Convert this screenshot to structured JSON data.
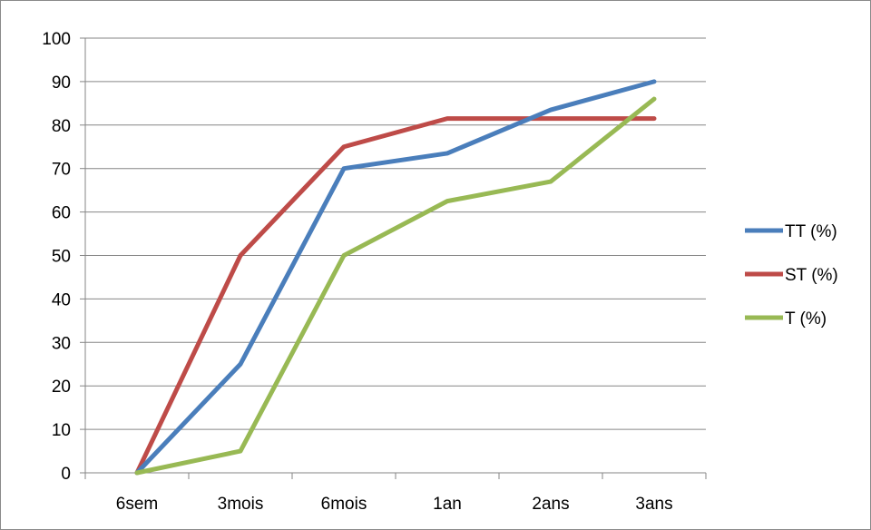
{
  "chart_data": {
    "type": "line",
    "title": "",
    "xlabel": "",
    "ylabel": "",
    "categories": [
      "6sem",
      "3mois",
      "6mois",
      "1an",
      "2ans",
      "3ans"
    ],
    "ylim": [
      0,
      100
    ],
    "ytick_step": 10,
    "y_ticks": [
      "0",
      "10",
      "20",
      "30",
      "40",
      "50",
      "60",
      "70",
      "80",
      "90",
      "100"
    ],
    "grid": true,
    "legend_position": "right",
    "series": [
      {
        "name": "TT (%)",
        "color": "#4a7ebb",
        "values": [
          0,
          25,
          70,
          73.5,
          83.5,
          90
        ]
      },
      {
        "name": "ST (%)",
        "color": "#be4b48",
        "values": [
          0,
          50,
          75,
          81.5,
          81.5,
          81.5
        ]
      },
      {
        "name": "T (%)",
        "color": "#98b954",
        "values": [
          0,
          5,
          50,
          62.5,
          67,
          86
        ]
      }
    ]
  }
}
